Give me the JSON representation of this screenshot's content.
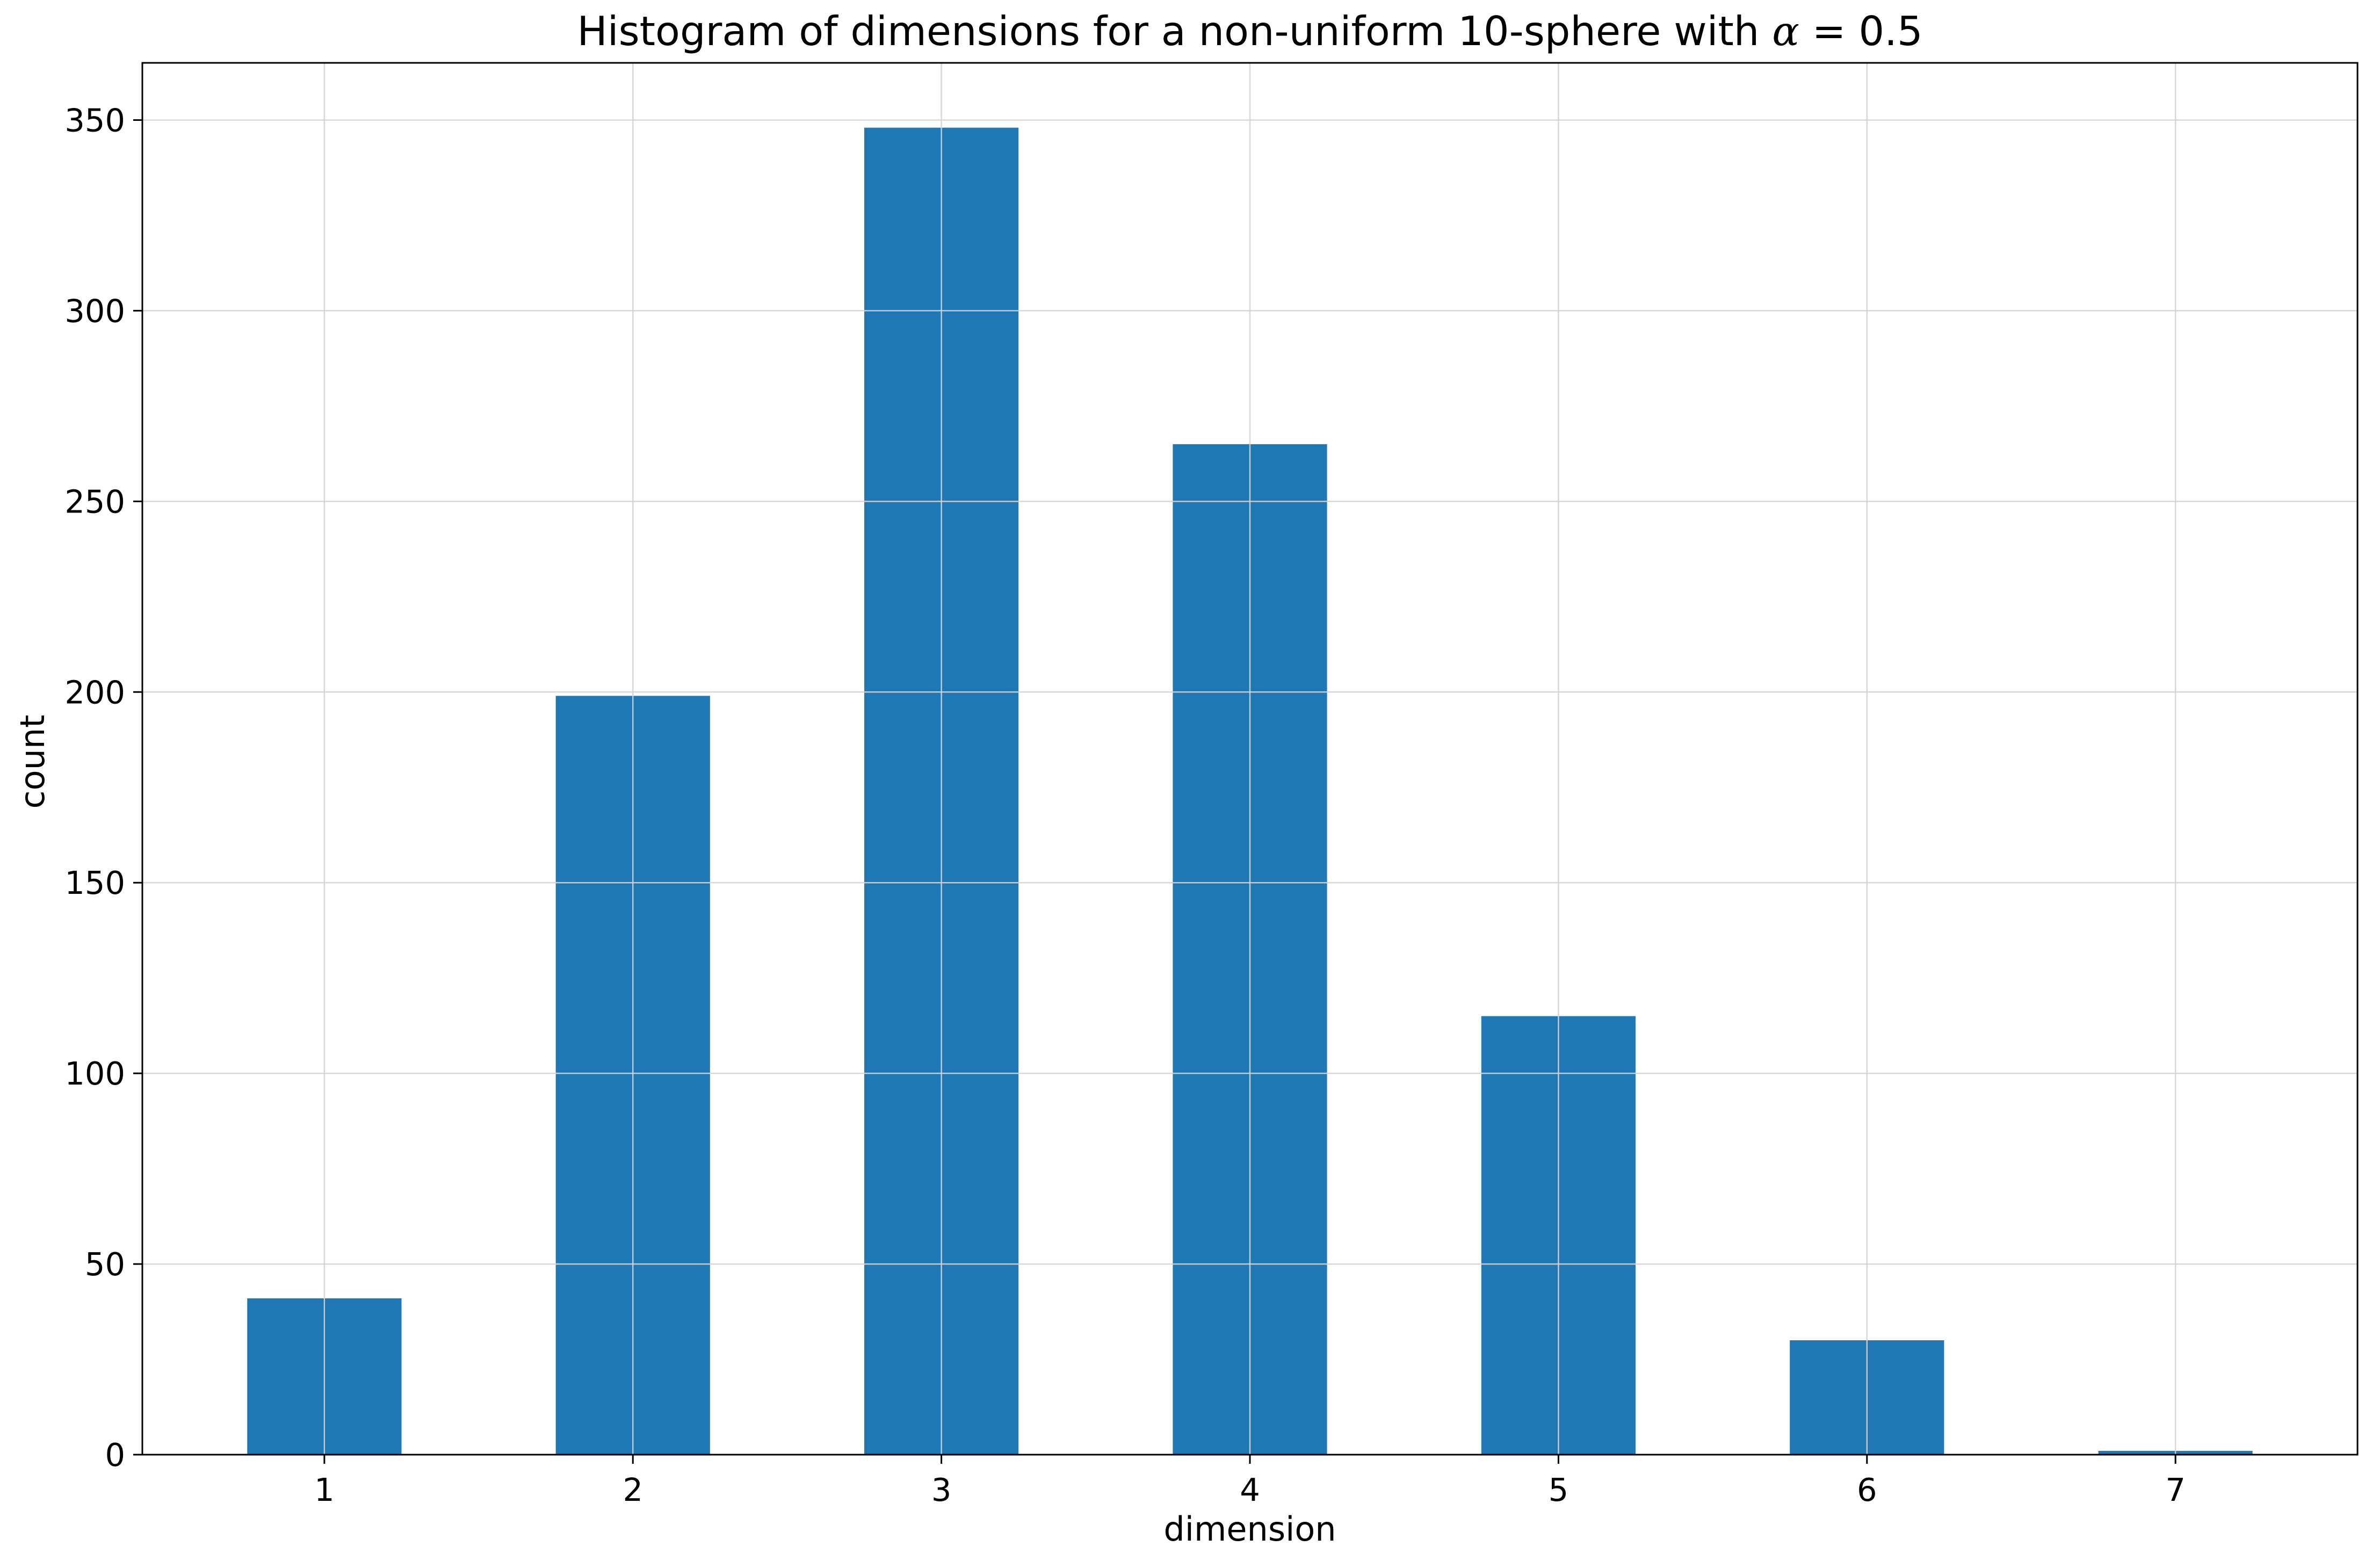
{
  "chart_data": {
    "type": "bar",
    "title_prefix": "Histogram of dimensions for a non-uniform 10-sphere with ",
    "title_symbol": "α",
    "title_suffix": " = 0.5",
    "xlabel": "dimension",
    "ylabel": "count",
    "categories": [
      "1",
      "2",
      "3",
      "4",
      "5",
      "6",
      "7"
    ],
    "values": [
      41,
      199,
      348,
      265,
      115,
      30,
      1
    ],
    "xlim": [
      0.41,
      7.59
    ],
    "ylim": [
      0,
      365
    ],
    "yticks": [
      0,
      50,
      100,
      150,
      200,
      250,
      300,
      350
    ],
    "grid": true,
    "colors": {
      "bar": "#1f77b4",
      "grid": "#d3d3d3",
      "axis": "#000000",
      "background": "#ffffff"
    }
  }
}
